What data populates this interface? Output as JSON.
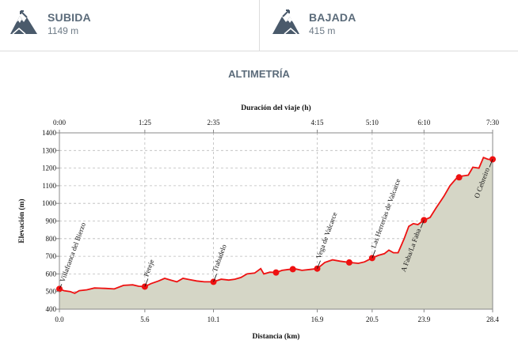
{
  "stats": {
    "ascent": {
      "label": "SUBIDA",
      "value": "1149 m",
      "icon": "mountain-up-icon"
    },
    "descent": {
      "label": "BAJADA",
      "value": "415 m",
      "icon": "mountain-down-icon"
    }
  },
  "section_title": "ALTIMETRÍA",
  "colors": {
    "line": "#ee1111",
    "fill": "#d5d6c6",
    "marker": "#ee1111",
    "text": "#5b6b7a"
  },
  "chart_data": {
    "type": "area",
    "title": "Duración del viaje (h)",
    "xlabel": "Distancia (km)",
    "ylabel": "Elevación (m)",
    "xlim": [
      0,
      28.4
    ],
    "ylim": [
      400,
      1400
    ],
    "x_ticks": [
      0.0,
      5.6,
      10.1,
      16.9,
      20.5,
      23.9,
      28.4
    ],
    "x_tick_labels": [
      "0.0",
      "5.6",
      "10.1",
      "16.9",
      "20.5",
      "23.9",
      "28.4"
    ],
    "y_ticks": [
      400,
      500,
      600,
      700,
      800,
      900,
      1000,
      1100,
      1200,
      1300,
      1400
    ],
    "top_ticks": [
      0.0,
      5.6,
      10.1,
      16.9,
      20.5,
      23.9,
      28.4
    ],
    "top_tick_labels": [
      "0:00",
      "1:25",
      "2:35",
      "4:15",
      "5:10",
      "6:10",
      "7:30"
    ],
    "grid": true,
    "profile": [
      [
        0.0,
        515
      ],
      [
        0.3,
        505
      ],
      [
        0.7,
        500
      ],
      [
        1.0,
        490
      ],
      [
        1.3,
        505
      ],
      [
        1.8,
        510
      ],
      [
        2.3,
        520
      ],
      [
        3.0,
        518
      ],
      [
        3.6,
        515
      ],
      [
        4.2,
        535
      ],
      [
        4.8,
        538
      ],
      [
        5.2,
        530
      ],
      [
        5.6,
        528
      ],
      [
        6.0,
        545
      ],
      [
        6.5,
        560
      ],
      [
        6.9,
        575
      ],
      [
        7.3,
        565
      ],
      [
        7.7,
        555
      ],
      [
        8.1,
        575
      ],
      [
        8.5,
        568
      ],
      [
        9.0,
        560
      ],
      [
        9.5,
        555
      ],
      [
        10.1,
        555
      ],
      [
        10.6,
        570
      ],
      [
        11.1,
        565
      ],
      [
        11.5,
        570
      ],
      [
        11.9,
        580
      ],
      [
        12.3,
        600
      ],
      [
        12.8,
        605
      ],
      [
        13.2,
        630
      ],
      [
        13.4,
        600
      ],
      [
        13.8,
        610
      ],
      [
        14.2,
        608
      ],
      [
        14.6,
        620
      ],
      [
        15.0,
        625
      ],
      [
        15.5,
        628
      ],
      [
        15.9,
        620
      ],
      [
        16.4,
        625
      ],
      [
        16.9,
        630
      ],
      [
        17.4,
        665
      ],
      [
        17.9,
        680
      ],
      [
        18.4,
        672
      ],
      [
        19.0,
        665
      ],
      [
        19.6,
        660
      ],
      [
        20.0,
        668
      ],
      [
        20.5,
        690
      ],
      [
        20.9,
        705
      ],
      [
        21.3,
        715
      ],
      [
        21.6,
        735
      ],
      [
        21.9,
        720
      ],
      [
        22.2,
        720
      ],
      [
        22.6,
        800
      ],
      [
        22.9,
        870
      ],
      [
        23.2,
        885
      ],
      [
        23.5,
        880
      ],
      [
        23.9,
        905
      ],
      [
        24.3,
        920
      ],
      [
        24.7,
        975
      ],
      [
        25.2,
        1040
      ],
      [
        25.6,
        1100
      ],
      [
        26.0,
        1140
      ],
      [
        26.4,
        1155
      ],
      [
        26.8,
        1160
      ],
      [
        27.1,
        1205
      ],
      [
        27.5,
        1200
      ],
      [
        27.8,
        1260
      ],
      [
        28.1,
        1250
      ],
      [
        28.4,
        1250
      ]
    ],
    "markers": [
      0.0,
      5.6,
      10.1,
      14.2,
      15.3,
      16.9,
      19.0,
      20.5,
      23.9,
      26.2,
      28.4
    ],
    "annotations": [
      {
        "label": "Villafranca del Bierzo",
        "x": 0.0
      },
      {
        "label": "Pereje",
        "x": 5.6
      },
      {
        "label": "Trabadelo",
        "x": 10.1
      },
      {
        "label": "Vega de Valcarce",
        "x": 16.9
      },
      {
        "label": "Las Herrerías de Valcarce",
        "x": 20.5
      },
      {
        "label": "A Faba/La Faba",
        "x": 23.9
      },
      {
        "label": "O Cebreiro",
        "x": 28.4
      }
    ]
  }
}
